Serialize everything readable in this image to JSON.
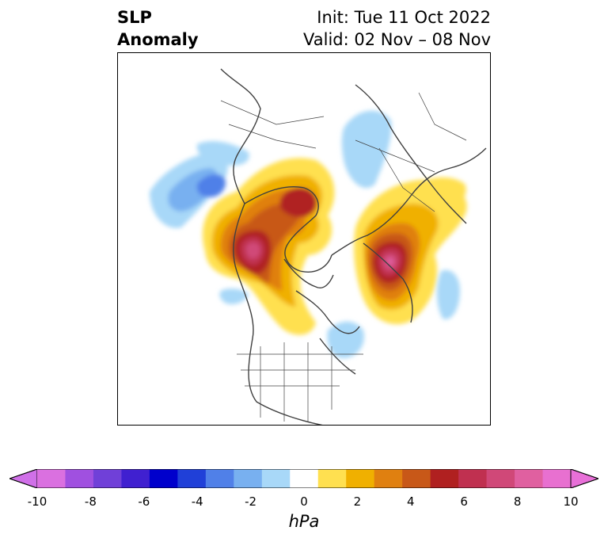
{
  "title": {
    "line1": "SLP",
    "line2": "Anomaly",
    "init": "Init: Tue 11 Oct 2022",
    "valid": "Valid: 02 Nov – 08 Nov"
  },
  "colorbar": {
    "label": "hPa",
    "ticks": [
      "-10",
      "-8",
      "-6",
      "-4",
      "-2",
      "0",
      "2",
      "4",
      "6",
      "8",
      "10"
    ],
    "colors": [
      "#da70e0",
      "#a050e0",
      "#7040d8",
      "#4020d0",
      "#0000cc",
      "#2040d8",
      "#5080e8",
      "#78b0f0",
      "#a8d8f8",
      "#ffffff",
      "#ffe050",
      "#f0b000",
      "#e08010",
      "#c85818",
      "#b02020",
      "#c03050",
      "#d04878",
      "#e060a0",
      "#e870d0"
    ],
    "extend_min_color": "#d070e8",
    "extend_max_color": "#e870d8"
  },
  "map": {
    "projection": "polar stereographic (North Pole)",
    "field": "SLP anomaly"
  }
}
